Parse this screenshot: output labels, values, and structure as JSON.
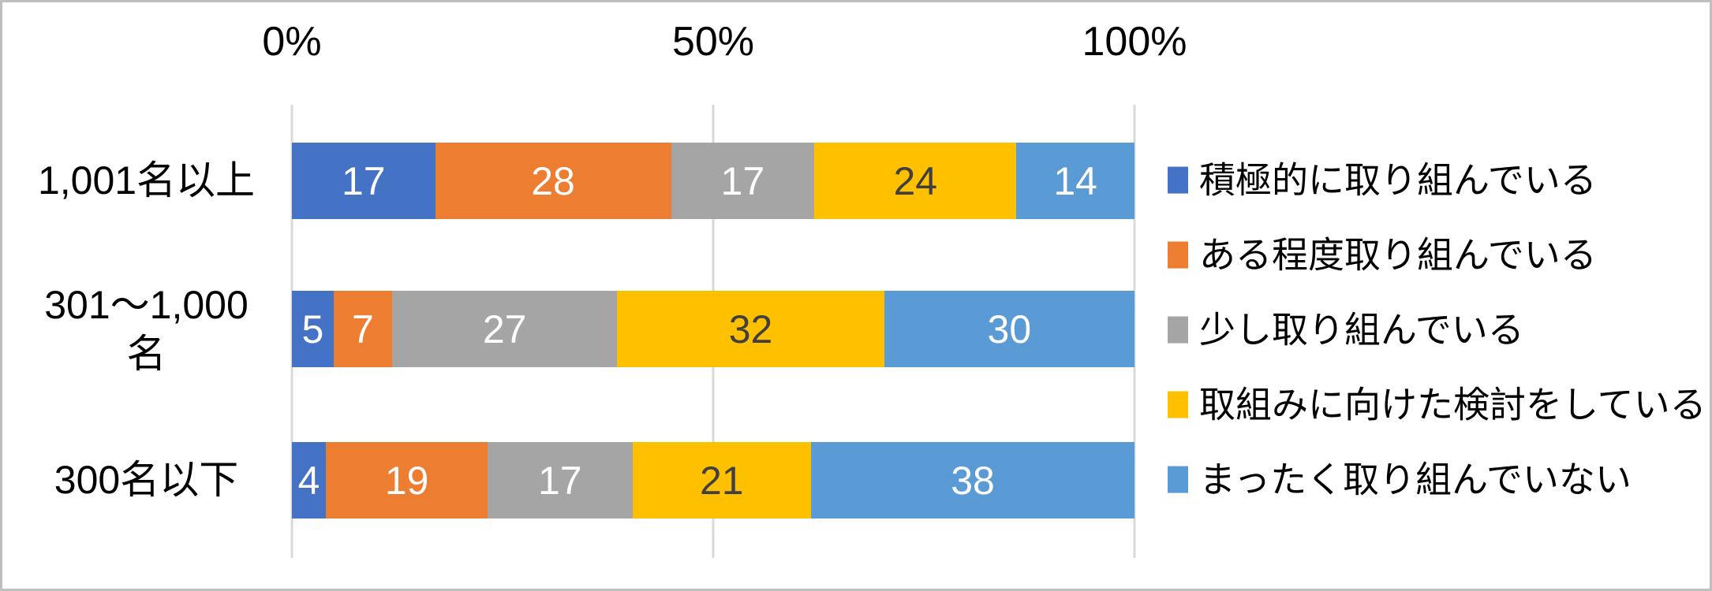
{
  "chart_data": {
    "type": "bar",
    "variant": "stacked-horizontal-percent",
    "title": "",
    "x_axis": {
      "ticks": [
        "0%",
        "50%",
        "100%"
      ],
      "tick_positions": [
        0,
        50,
        100
      ],
      "range": [
        0,
        100
      ],
      "position": "top"
    },
    "grid": true,
    "legend_position": "right",
    "categories": [
      "1,001名以上",
      "301〜1,000名",
      "300名以下"
    ],
    "category_label_lines": [
      [
        "1,001名以上"
      ],
      [
        "301〜1,000",
        "名"
      ],
      [
        "300名以下"
      ]
    ],
    "series": [
      {
        "name": "積極的に取り組んでいる",
        "color": "#4472C4",
        "label_color": "#FFFFFF",
        "values": [
          17,
          5,
          4
        ]
      },
      {
        "name": "ある程度取り組んでいる",
        "color": "#ED7D31",
        "label_color": "#FFFFFF",
        "values": [
          28,
          7,
          19
        ]
      },
      {
        "name": "少し取り組んでいる",
        "color": "#A5A5A5",
        "label_color": "#FFFFFF",
        "values": [
          17,
          27,
          17
        ]
      },
      {
        "name": "取組みに向けた検討をしている",
        "color": "#FFC000",
        "label_color": "#404040",
        "values": [
          24,
          32,
          21
        ]
      },
      {
        "name": "まったく取り組んでいない",
        "color": "#5B9BD5",
        "label_color": "#FFFFFF",
        "values": [
          14,
          30,
          38
        ]
      }
    ]
  },
  "style": {
    "background": "#FFFFFF",
    "border_color": "#BFBFBF",
    "gridline_color": "#D9D9D9",
    "text_color": "#000000"
  }
}
